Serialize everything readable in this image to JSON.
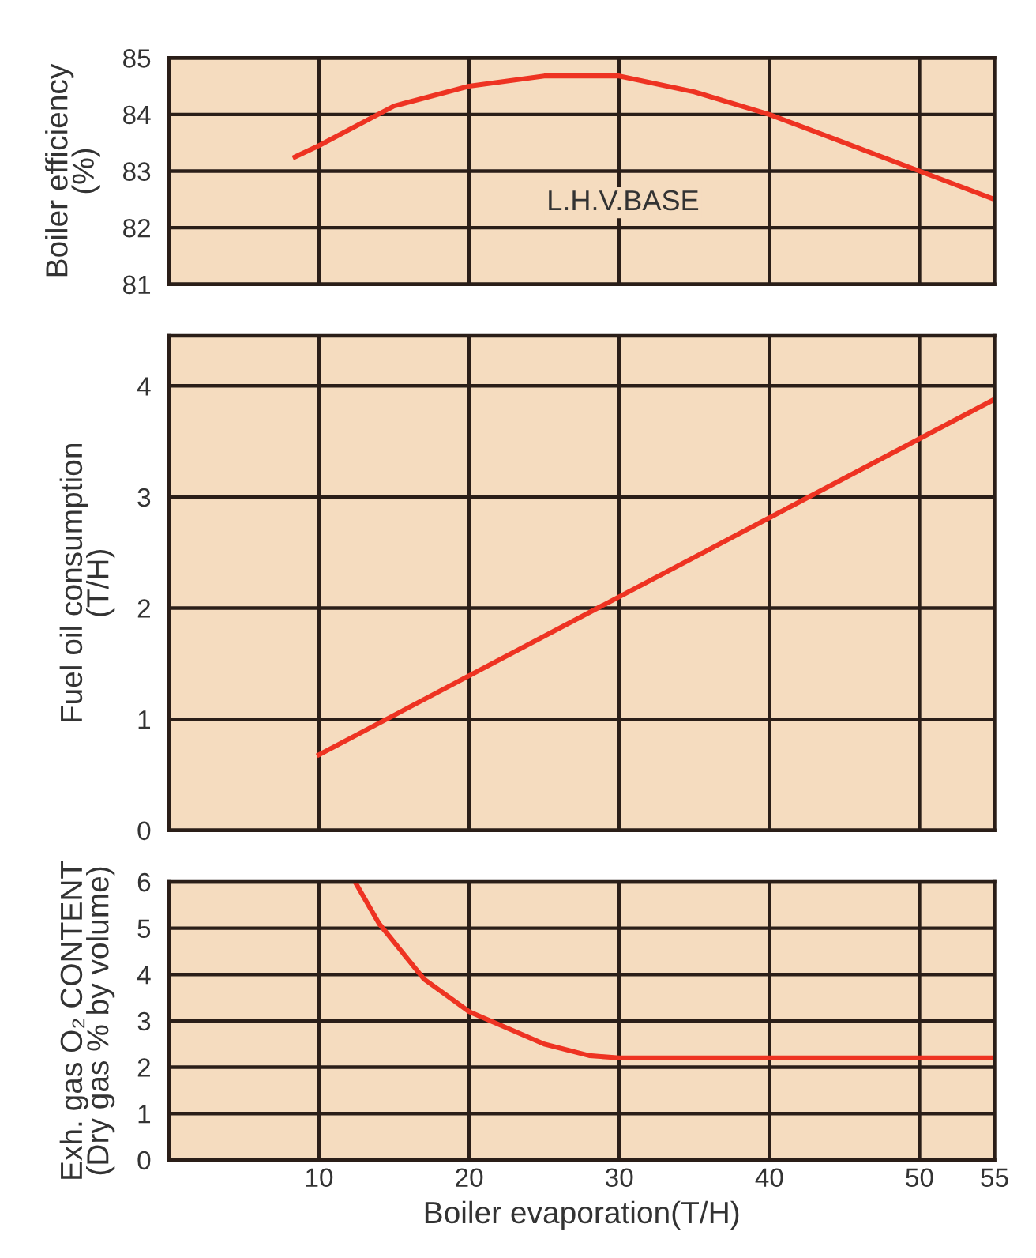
{
  "chart_data": [
    {
      "type": "line",
      "ylabel": "Boiler efficiency\n(%)",
      "xlim": [
        0,
        55
      ],
      "xticks": [
        10,
        20,
        30,
        40,
        50,
        55
      ],
      "ylim": [
        81,
        85
      ],
      "yticks": [
        81,
        82,
        83,
        84,
        85
      ],
      "grid": true,
      "tick_labels": "y",
      "line_style": "solid",
      "annotations": [
        "L.H.V.BASE"
      ],
      "series": [
        {
          "color": "#ee3322",
          "x": [
            8.4,
            10,
            15,
            20,
            25,
            30,
            35,
            40,
            45,
            50,
            55
          ],
          "values": [
            83.25,
            83.45,
            84.15,
            84.5,
            84.68,
            84.68,
            84.4,
            84.0,
            83.5,
            83.0,
            82.5
          ]
        }
      ]
    },
    {
      "type": "line",
      "ylabel": "Fuel oil consumption\n(T/H)",
      "xlim": [
        0,
        55
      ],
      "xticks": [
        10,
        20,
        30,
        40,
        50,
        55
      ],
      "ylim": [
        0,
        4.45
      ],
      "yticks": [
        0,
        1,
        2,
        3,
        4
      ],
      "grid": true,
      "tick_labels": "y",
      "line_style": "solid",
      "series": [
        {
          "color": "#ee3322",
          "x": [
            10,
            55
          ],
          "values": [
            0.68,
            3.88
          ]
        }
      ]
    },
    {
      "type": "line",
      "ylabel": "Exh. gas O₂ CONTENT\n(Dry gas % by volume)",
      "xlabel": "Boiler evaporation(T/H)",
      "xlim": [
        0,
        55
      ],
      "xticks": [
        10,
        20,
        30,
        40,
        50,
        55
      ],
      "ylim": [
        0,
        6
      ],
      "yticks": [
        0,
        1,
        2,
        3,
        4,
        5,
        6
      ],
      "grid": true,
      "line_style": "solid",
      "series": [
        {
          "color": "#ee3322",
          "x": [
            12.4,
            14,
            17,
            20,
            25,
            28,
            30,
            55
          ],
          "values": [
            6,
            5.1,
            3.9,
            3.2,
            2.5,
            2.25,
            2.2,
            2.2
          ]
        }
      ]
    }
  ]
}
